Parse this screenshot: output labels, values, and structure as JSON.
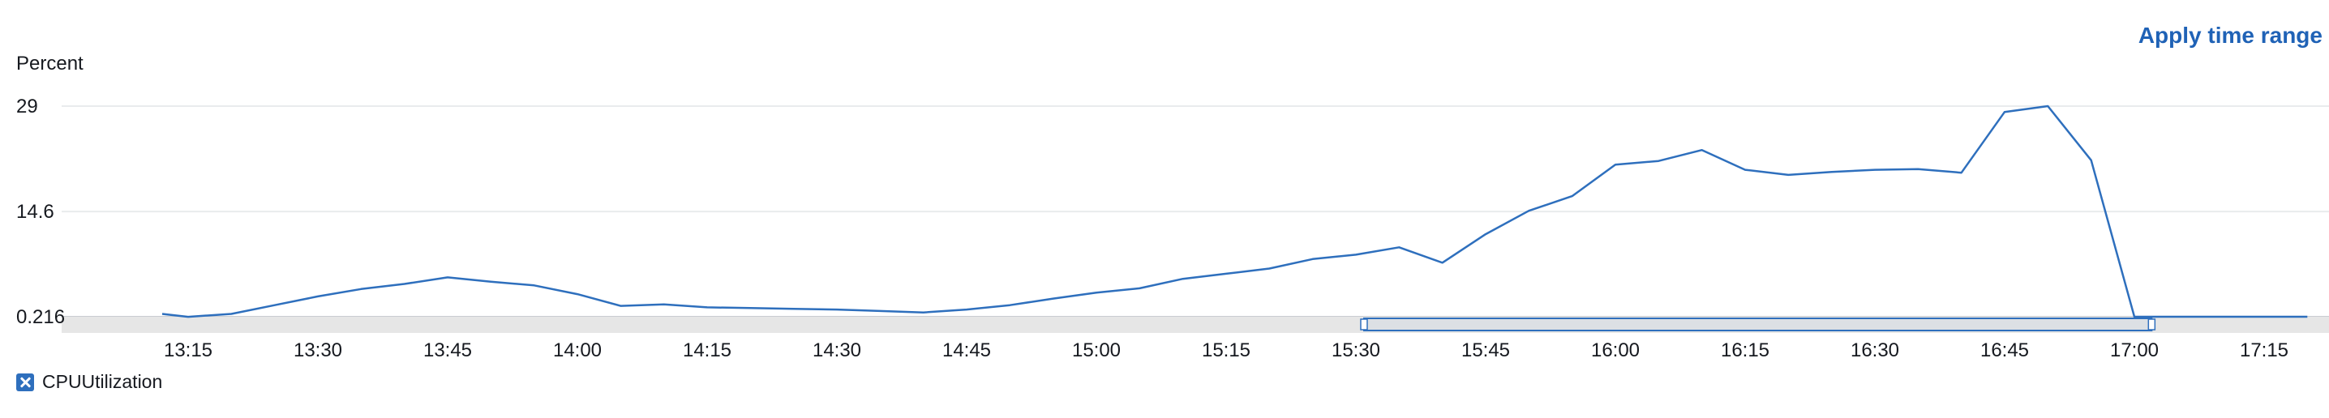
{
  "header": {
    "apply_label": "Apply time range"
  },
  "legend": {
    "label": "CPUUtilization"
  },
  "colors": {
    "series": "#2e6fbd",
    "accent": "#1f62b6",
    "grid": "#e9ebed",
    "band": "#e6e6e6"
  },
  "chart_data": {
    "type": "line",
    "ylabel": "Percent",
    "ylim": [
      0.216,
      29
    ],
    "y_ticks": [
      "29",
      "14.6",
      "0.216"
    ],
    "x_ticks": [
      "13:15",
      "13:30",
      "13:45",
      "14:00",
      "14:15",
      "14:30",
      "14:45",
      "15:00",
      "15:15",
      "15:30",
      "15:45",
      "16:00",
      "16:15",
      "16:30",
      "16:45",
      "17:00",
      "17:15"
    ],
    "series": [
      {
        "name": "CPUUtilization",
        "x": [
          "13:12",
          "13:15",
          "13:20",
          "13:25",
          "13:30",
          "13:35",
          "13:40",
          "13:45",
          "13:50",
          "13:55",
          "14:00",
          "14:05",
          "14:10",
          "14:15",
          "14:20",
          "14:25",
          "14:30",
          "14:35",
          "14:40",
          "14:45",
          "14:50",
          "14:55",
          "15:00",
          "15:05",
          "15:10",
          "15:15",
          "15:20",
          "15:25",
          "15:30",
          "15:35",
          "15:40",
          "15:45",
          "15:50",
          "15:55",
          "16:00",
          "16:05",
          "16:10",
          "16:15",
          "16:20",
          "16:25",
          "16:30",
          "16:35",
          "16:40",
          "16:45",
          "16:50",
          "16:55",
          "17:00",
          "17:05",
          "17:10",
          "17:15",
          "17:20"
        ],
        "values": [
          0.6,
          0.2,
          0.6,
          1.8,
          3.0,
          4.0,
          4.7,
          5.6,
          5.0,
          4.5,
          3.3,
          1.7,
          1.9,
          1.5,
          1.4,
          1.3,
          1.2,
          1.0,
          0.8,
          1.2,
          1.8,
          2.7,
          3.5,
          4.1,
          5.4,
          6.1,
          6.8,
          8.1,
          8.7,
          9.7,
          7.6,
          11.5,
          14.7,
          16.7,
          21.0,
          21.5,
          23.0,
          20.3,
          19.6,
          20.0,
          20.3,
          20.4,
          19.9,
          28.2,
          29.0,
          21.6,
          0.216,
          0.216,
          0.216,
          0.216,
          0.216
        ]
      }
    ],
    "brush_range": [
      "15:30",
      "17:02"
    ],
    "grid": true,
    "legend_position": "bottom-left"
  }
}
